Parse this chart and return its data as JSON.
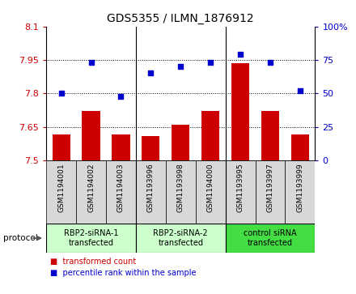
{
  "title": "GDS5355 / ILMN_1876912",
  "samples": [
    "GSM1194001",
    "GSM1194002",
    "GSM1194003",
    "GSM1193996",
    "GSM1193998",
    "GSM1194000",
    "GSM1193995",
    "GSM1193997",
    "GSM1193999"
  ],
  "bar_values": [
    7.615,
    7.72,
    7.615,
    7.61,
    7.66,
    7.72,
    7.935,
    7.72,
    7.615
  ],
  "dot_values": [
    50,
    73,
    48,
    65,
    70,
    73,
    79,
    73,
    52
  ],
  "ylim_left": [
    7.5,
    8.1
  ],
  "ylim_right": [
    0,
    100
  ],
  "yticks_left": [
    7.5,
    7.65,
    7.8,
    7.95,
    8.1
  ],
  "yticks_right": [
    0,
    25,
    50,
    75,
    100
  ],
  "bar_color": "#cc0000",
  "dot_color": "#0000cc",
  "bar_bottom": 7.5,
  "groups": [
    {
      "label": "RBP2-siRNA-1\ntransfected",
      "color": "#ccffcc"
    },
    {
      "label": "RBP2-siRNA-2\ntransfected",
      "color": "#ccffcc"
    },
    {
      "label": "control siRNA\ntransfected",
      "color": "#44dd44"
    }
  ],
  "protocol_label": "protocol",
  "legend_bar_label": "transformed count",
  "legend_dot_label": "percentile rank within the sample",
  "plot_bg_color": "#ffffff",
  "sample_bg_color": "#d8d8d8",
  "title_fontsize": 10,
  "axis_fontsize": 8
}
